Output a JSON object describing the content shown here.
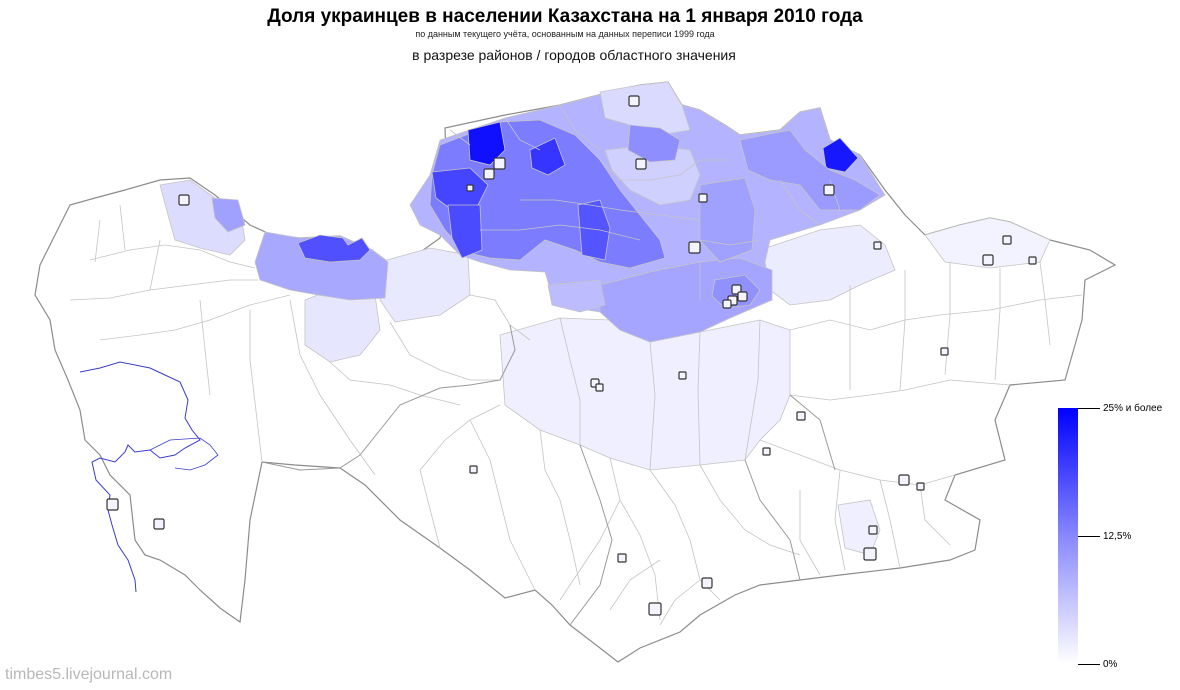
{
  "title": "Доля украинцев в населении Казахстана на 1 января 2010 года",
  "subtitle": "по данным текущего учёта, основанным на данных переписи 1999 года",
  "subtitle2": "в разрезе районов / городов областного значения",
  "legend": {
    "ticks": [
      {
        "label": "25% и более",
        "value": 25
      },
      {
        "label": "12,5%",
        "value": 12.5
      },
      {
        "label": "0%",
        "value": 0
      }
    ],
    "color_high": "#0000ff",
    "color_low": "#ffffff"
  },
  "watermark": "timbes5.livejournal.com",
  "colors": {
    "border": "#b0b0b0",
    "outline": "#8c8c8c",
    "water": "#3b3bcc",
    "city_outline": "#333333"
  }
}
